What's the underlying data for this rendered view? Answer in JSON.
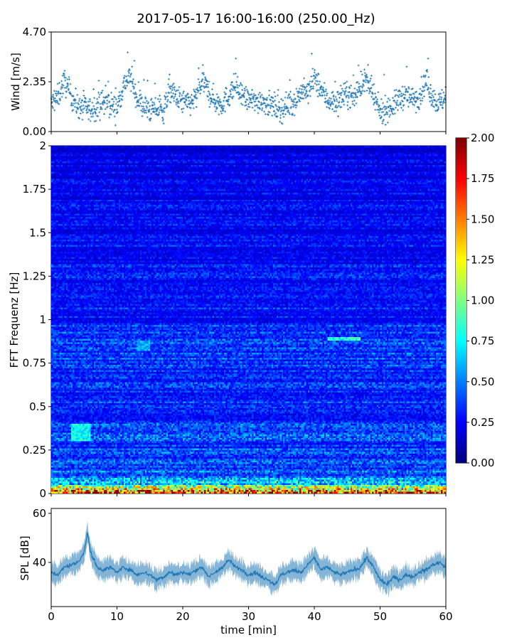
{
  "figure": {
    "title": "2017-05-17 16:00-16:00 (250.00_Hz)"
  },
  "chart_data": [
    {
      "type": "scatter",
      "panel": "wind",
      "ylabel": "Wind [m/s]",
      "xlabel": "",
      "xlim": [
        0,
        60
      ],
      "ylim": [
        0,
        4.7
      ],
      "yticks": [
        "0.00",
        "2.35",
        "4.70"
      ],
      "grid": false,
      "marker": "+",
      "color": "#1f77b4",
      "series": [
        {
          "x": [
            0,
            1,
            2,
            3,
            4,
            5,
            6,
            7,
            8,
            9,
            10,
            11,
            12,
            13,
            14,
            15,
            16,
            17,
            18,
            19,
            20,
            21,
            22,
            23,
            24,
            25,
            26,
            27,
            28,
            29,
            30,
            31,
            32,
            33,
            34,
            35,
            36,
            37,
            38,
            39,
            40,
            41,
            42,
            43,
            44,
            45,
            46,
            47,
            48,
            49,
            50,
            51,
            52,
            53,
            54,
            55,
            56,
            57,
            58,
            59,
            60
          ],
          "values": [
            1.3,
            1.6,
            2.4,
            1.7,
            1.2,
            1.1,
            1.0,
            1.2,
            1.4,
            1.3,
            1.1,
            2.2,
            2.6,
            1.6,
            1.2,
            1.0,
            1.1,
            0.9,
            2.0,
            1.6,
            1.4,
            1.3,
            1.6,
            2.4,
            1.8,
            1.4,
            1.3,
            1.7,
            2.2,
            1.6,
            1.5,
            1.4,
            1.5,
            1.3,
            1.2,
            1.0,
            1.3,
            1.4,
            1.9,
            1.8,
            2.5,
            2.0,
            1.5,
            1.4,
            1.5,
            1.8,
            1.6,
            2.2,
            2.4,
            1.6,
            0.9,
            1.1,
            1.2,
            1.6,
            1.7,
            1.5,
            1.7,
            2.4,
            1.6,
            1.3,
            1.7
          ]
        }
      ]
    },
    {
      "type": "heatmap",
      "panel": "spectrogram",
      "ylabel": "FFT Frequenz [Hz]",
      "xlabel": "",
      "xlim": [
        0,
        60
      ],
      "ylim": [
        0,
        2
      ],
      "yticks": [
        "0",
        "0.25",
        "0.5",
        "0.75",
        "1",
        "1.25",
        "1.5",
        "1.75",
        "2"
      ],
      "colormap": "jet",
      "colorbar": {
        "range": [
          0,
          2
        ],
        "ticks": [
          "0.00",
          "0.25",
          "0.50",
          "0.75",
          "1.00",
          "1.25",
          "1.50",
          "1.75",
          "2.00"
        ]
      },
      "band_profile": {
        "frequency_hz": [
          0,
          0.02,
          0.04,
          0.06,
          0.1,
          0.2,
          0.3,
          0.4,
          0.6,
          0.8,
          0.9,
          1.0,
          1.5,
          2.0
        ],
        "typical_level": [
          1.6,
          1.2,
          0.9,
          0.7,
          0.45,
          0.35,
          0.4,
          0.35,
          0.32,
          0.38,
          0.35,
          0.3,
          0.25,
          0.2
        ]
      },
      "notable_patches": [
        {
          "time_min": [
            3,
            6
          ],
          "frequency_hz": [
            0.3,
            0.4
          ],
          "level": 0.75
        },
        {
          "time_min": [
            13,
            15
          ],
          "frequency_hz": [
            0.82,
            0.88
          ],
          "level": 0.6
        },
        {
          "time_min": [
            42,
            47
          ],
          "frequency_hz": [
            0.88,
            0.9
          ],
          "level": 0.8
        },
        {
          "time_min": [
            5,
            6
          ],
          "frequency_hz": [
            0.0,
            0.01
          ],
          "level": 1.9
        }
      ]
    },
    {
      "type": "area",
      "panel": "spl",
      "ylabel": "SPL [dB]",
      "xlabel": "time [min]",
      "xlim": [
        0,
        60
      ],
      "ylim": [
        22,
        62
      ],
      "yticks": [
        "40",
        "60"
      ],
      "xticks": [
        "0",
        "10",
        "20",
        "30",
        "40",
        "50",
        "60"
      ],
      "grid": false,
      "color": "#1f77b4",
      "series": [
        {
          "x": [
            0,
            1,
            2,
            3,
            4,
            5,
            5.5,
            6,
            7,
            8,
            9,
            10,
            11,
            12,
            13,
            14,
            15,
            16,
            17,
            18,
            19,
            20,
            21,
            22,
            23,
            24,
            25,
            26,
            27,
            28,
            29,
            30,
            31,
            32,
            33,
            34,
            35,
            36,
            37,
            38,
            39,
            40,
            41,
            42,
            43,
            44,
            45,
            46,
            47,
            48,
            49,
            50,
            51,
            52,
            53,
            54,
            55,
            56,
            57,
            58,
            59,
            60
          ],
          "values": [
            36,
            35,
            38,
            39,
            40,
            44,
            52,
            44,
            38,
            37,
            38,
            36,
            38,
            37,
            35,
            36,
            35,
            33,
            34,
            36,
            35,
            36,
            35,
            37,
            38,
            34,
            36,
            38,
            41,
            38,
            37,
            35,
            36,
            34,
            33,
            31,
            35,
            36,
            37,
            36,
            39,
            42,
            37,
            38,
            36,
            35,
            36,
            37,
            38,
            42,
            38,
            33,
            31,
            34,
            33,
            35,
            34,
            36,
            37,
            39,
            40,
            38
          ]
        }
      ]
    }
  ]
}
